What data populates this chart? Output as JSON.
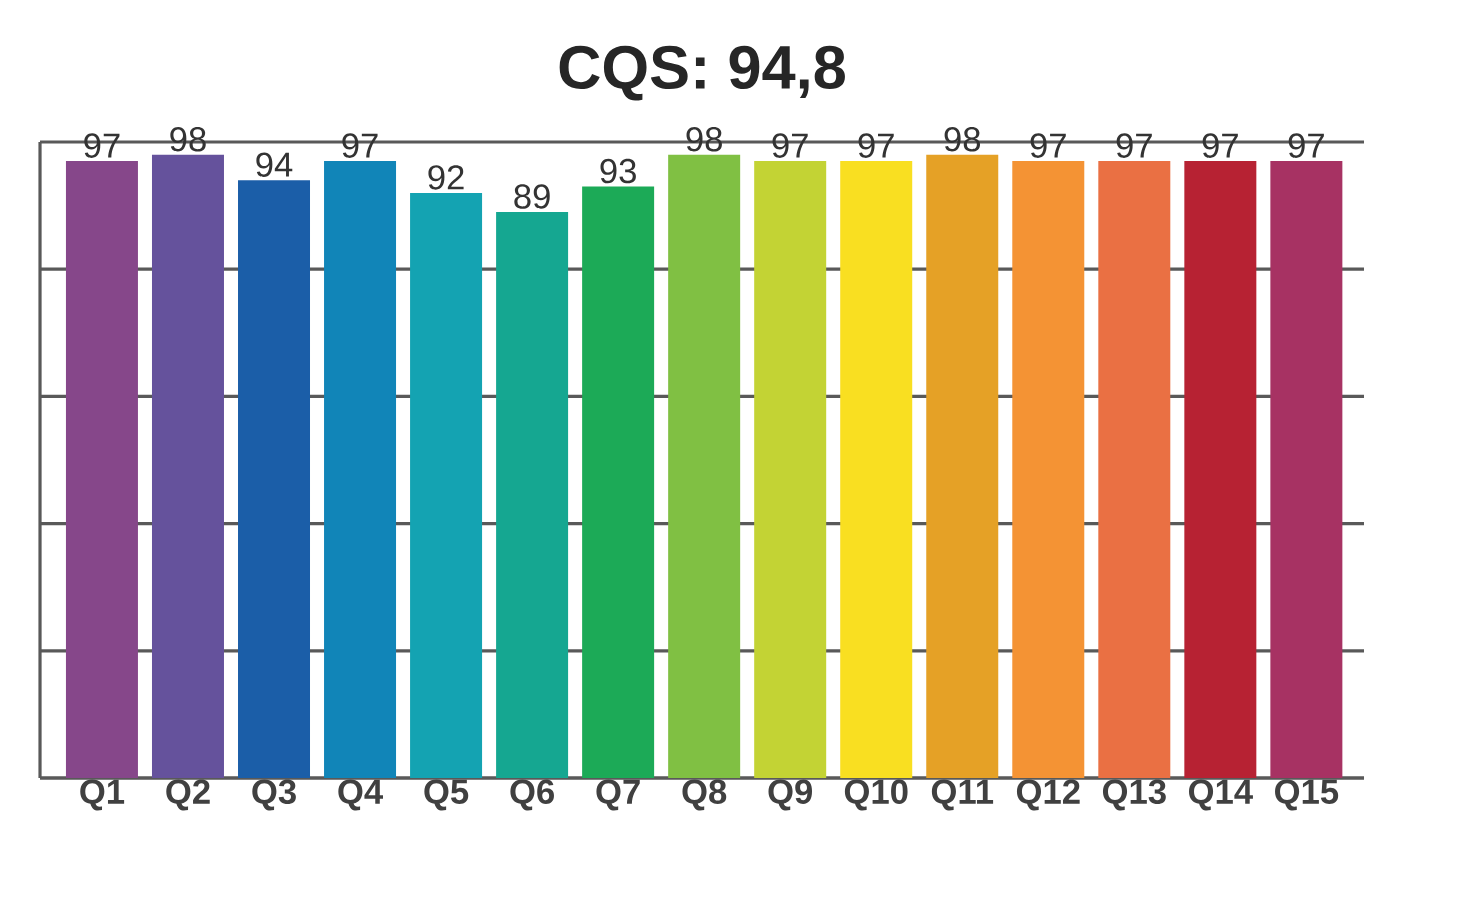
{
  "chart_data": {
    "type": "bar",
    "title": "CQS: 94,8",
    "categories": [
      "Q1",
      "Q2",
      "Q3",
      "Q4",
      "Q5",
      "Q6",
      "Q7",
      "Q8",
      "Q9",
      "Q10",
      "Q11",
      "Q12",
      "Q13",
      "Q14",
      "Q15"
    ],
    "values": [
      97,
      98,
      94,
      97,
      92,
      89,
      93,
      98,
      97,
      97,
      98,
      97,
      97,
      97,
      97
    ],
    "colors": [
      "#86478a",
      "#65529c",
      "#1b5ea8",
      "#1185b8",
      "#14a3b2",
      "#15a791",
      "#1caa57",
      "#80c043",
      "#c3d334",
      "#f9df21",
      "#e5a126",
      "#f49334",
      "#ea7043",
      "#b72233",
      "#a73263"
    ],
    "data_labels": true,
    "ylim": [
      0,
      100
    ],
    "yticks": [
      {
        "value": 0,
        "label": null
      },
      {
        "value": 20,
        "label": null
      },
      {
        "value": 40,
        "label": null
      },
      {
        "value": 60,
        "label": null
      },
      {
        "value": 80,
        "label": null
      },
      {
        "value": 100,
        "label": null
      }
    ],
    "tick_labels": "x",
    "grid": "y"
  }
}
